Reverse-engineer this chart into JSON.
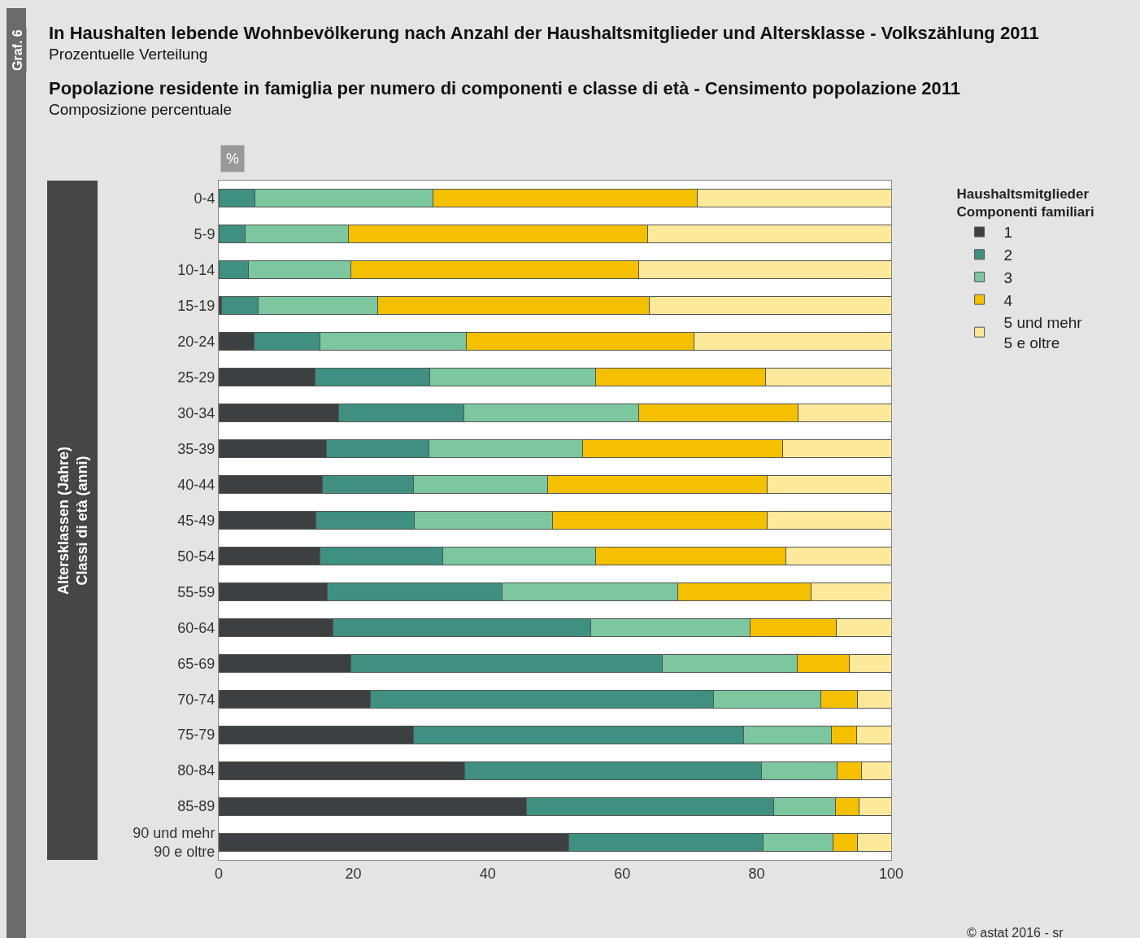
{
  "chart_data": {
    "type": "bar",
    "orientation": "horizontal",
    "stacked": true,
    "title": "In Haushalten lebende Wohnbevölkerung nach Anzahl der Haushaltsmitglieder und Altersklasse - Volkszählung 2011",
    "subtitle": "Prozentuelle Verteilung",
    "annotations": [
      "Popolazione residente in famiglia per numero di componenti e classe di età - Censimento popolazione 2011",
      "Composizione percentuale",
      "Graf. 6",
      "© astat 2016 - sr"
    ],
    "xlabel": "%",
    "ylabel": "Altersklassen (Jahre)\nClassi di età (anni)",
    "legend_title": "Haushaltsmitglieder\nComponenti familiari",
    "categories": [
      "0-4",
      "5-9",
      "10-14",
      "15-19",
      "20-24",
      "25-29",
      "30-34",
      "35-39",
      "40-44",
      "45-49",
      "50-54",
      "55-59",
      "60-64",
      "65-69",
      "70-74",
      "75-79",
      "80-84",
      "85-89",
      "90 und mehr\n90 e oltre"
    ],
    "series": [
      {
        "name": "1",
        "color": "#3c4043",
        "values": [
          0,
          0,
          0,
          0.4,
          5.3,
          14.3,
          17.8,
          16.0,
          15.4,
          14.5,
          15.1,
          16.1,
          17.0,
          19.6,
          22.5,
          29.0,
          36.6,
          45.8,
          52.0
        ]
      },
      {
        "name": "2",
        "color": "#3f9080",
        "values": [
          5.4,
          3.9,
          4.4,
          5.5,
          9.8,
          17.1,
          18.7,
          15.2,
          13.6,
          14.6,
          18.2,
          26.1,
          38.3,
          46.4,
          51.1,
          49.0,
          44.1,
          36.7,
          28.9
        ]
      },
      {
        "name": "3",
        "color": "#7cc6a0",
        "values": [
          26.5,
          15.4,
          15.3,
          17.7,
          21.7,
          24.6,
          25.9,
          22.9,
          19.9,
          20.5,
          22.7,
          26.0,
          23.7,
          20.0,
          16.0,
          13.1,
          11.3,
          9.2,
          10.4
        ]
      },
      {
        "name": "4",
        "color": "#f5c000",
        "values": [
          39.2,
          44.5,
          42.8,
          40.4,
          33.9,
          25.3,
          23.7,
          29.8,
          32.6,
          32.0,
          28.4,
          19.9,
          12.8,
          7.8,
          5.4,
          3.8,
          3.6,
          3.5,
          3.7
        ]
      },
      {
        "name": "5 und mehr\n5 e oltre",
        "color": "#fde99b",
        "values": [
          28.9,
          36.2,
          37.5,
          36.0,
          29.3,
          18.7,
          13.9,
          16.1,
          18.5,
          18.4,
          15.6,
          11.9,
          8.2,
          6.2,
          5.0,
          5.1,
          4.4,
          4.8,
          5.0
        ]
      }
    ],
    "xlim": [
      0,
      100
    ],
    "xticks": [
      0,
      20,
      40,
      60,
      80,
      100
    ],
    "grid": false,
    "legend": "right",
    "tick_labels": "xy"
  }
}
